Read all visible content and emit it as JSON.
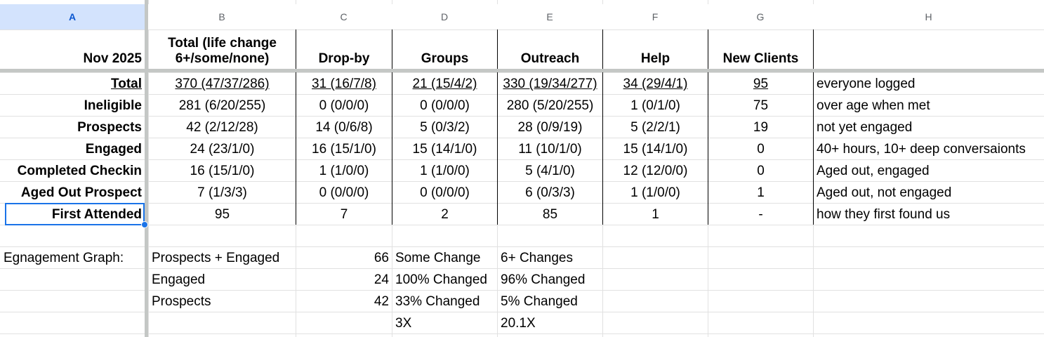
{
  "columns": [
    "A",
    "B",
    "C",
    "D",
    "E",
    "F",
    "G",
    "H"
  ],
  "header_row": {
    "a": "Nov 2025",
    "b": "Total (life change 6+/some/none)",
    "c": "Drop-by",
    "d": "Groups",
    "e": "Outreach",
    "f": "Help",
    "g": "New Clients",
    "h": ""
  },
  "rows": [
    {
      "a": "Total",
      "b": "370 (47/37/286)",
      "c": "31 (16/7/8)",
      "d": "21 (15/4/2)",
      "e": "330 (19/34/277)",
      "f": "34 (29/4/1)",
      "g": "95",
      "h": "everyone logged"
    },
    {
      "a": "Ineligible",
      "b": "281 (6/20/255)",
      "c": "0 (0/0/0)",
      "d": "0 (0/0/0)",
      "e": "280 (5/20/255)",
      "f": "1 (0/1/0)",
      "g": "75",
      "h": "over age when met"
    },
    {
      "a": "Prospects",
      "b": "42 (2/12/28)",
      "c": "14 (0/6/8)",
      "d": "5 (0/3/2)",
      "e": "28 (0/9/19)",
      "f": "5 (2/2/1)",
      "g": "19",
      "h": "not yet engaged"
    },
    {
      "a": "Engaged",
      "b": "24 (23/1/0)",
      "c": "16 (15/1/0)",
      "d": "15 (14/1/0)",
      "e": "11 (10/1/0)",
      "f": "15 (14/1/0)",
      "g": "0",
      "h": "40+ hours, 10+ deep conversaionts"
    },
    {
      "a": "Completed Checkin",
      "b": "16 (15/1/0)",
      "c": "1 (1/0/0)",
      "d": "1 (1/0/0)",
      "e": "5 (4/1/0)",
      "f": "12 (12/0/0)",
      "g": "0",
      "h": "Aged out, engaged"
    },
    {
      "a": "Aged Out Prospect",
      "b": "7 (1/3/3)",
      "c": "0 (0/0/0)",
      "d": "0 (0/0/0)",
      "e": "6 (0/3/3)",
      "f": "1 (1/0/0)",
      "g": "1",
      "h": "Aged out, not engaged"
    },
    {
      "a": "First Attended",
      "b": "95",
      "c": "7",
      "d": "2",
      "e": "85",
      "f": "1",
      "g": "-",
      "h": "how they first found us"
    }
  ],
  "graph_rows": [
    {
      "a": "Egnagement Graph:",
      "b": "Prospects + Engaged",
      "c": "66",
      "d": "Some Change",
      "e": "6+ Changes"
    },
    {
      "a": "",
      "b": "Engaged",
      "c": "24",
      "d": "100% Changed",
      "e": "96% Changed"
    },
    {
      "a": "",
      "b": "Prospects",
      "c": "42",
      "d": "33% Changed",
      "e": "5% Changed"
    },
    {
      "a": "",
      "b": "",
      "c": "",
      "d": "3X",
      "e": "20.1X"
    }
  ],
  "selected_cell": "A9",
  "colors": {
    "selection": "#1a73e8",
    "header_selected_bg": "#d3e3fd",
    "gridline": "#e1e1e1"
  }
}
